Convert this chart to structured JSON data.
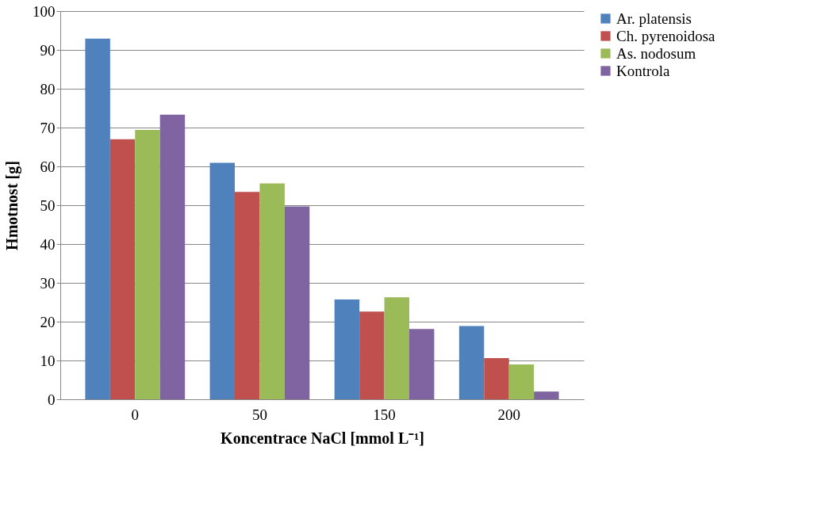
{
  "chart_data": {
    "type": "bar",
    "xlabel": "Koncentrace NaCl [mmol L⁻¹]",
    "ylabel": "Hmotnost [g]",
    "categories": [
      "0",
      "50",
      "150",
      "200"
    ],
    "series": [
      {
        "name": "Ar. platensis",
        "color": "#4f81bd",
        "values": [
          92.9,
          60.9,
          25.7,
          18.9
        ]
      },
      {
        "name": "Ch. pyrenoidosa",
        "color": "#c0504d",
        "values": [
          67.0,
          53.4,
          22.6,
          10.6
        ]
      },
      {
        "name": "As. nodosum",
        "color": "#9bbb59",
        "values": [
          69.4,
          55.6,
          26.3,
          9.0
        ]
      },
      {
        "name": "Kontrola",
        "color": "#8064a2",
        "values": [
          73.3,
          49.7,
          18.1,
          2.0
        ]
      }
    ],
    "ylim": [
      0,
      100
    ],
    "yticks": [
      0,
      10,
      20,
      30,
      40,
      50,
      60,
      70,
      80,
      90,
      100
    ],
    "grid": "y",
    "legend": "right"
  }
}
